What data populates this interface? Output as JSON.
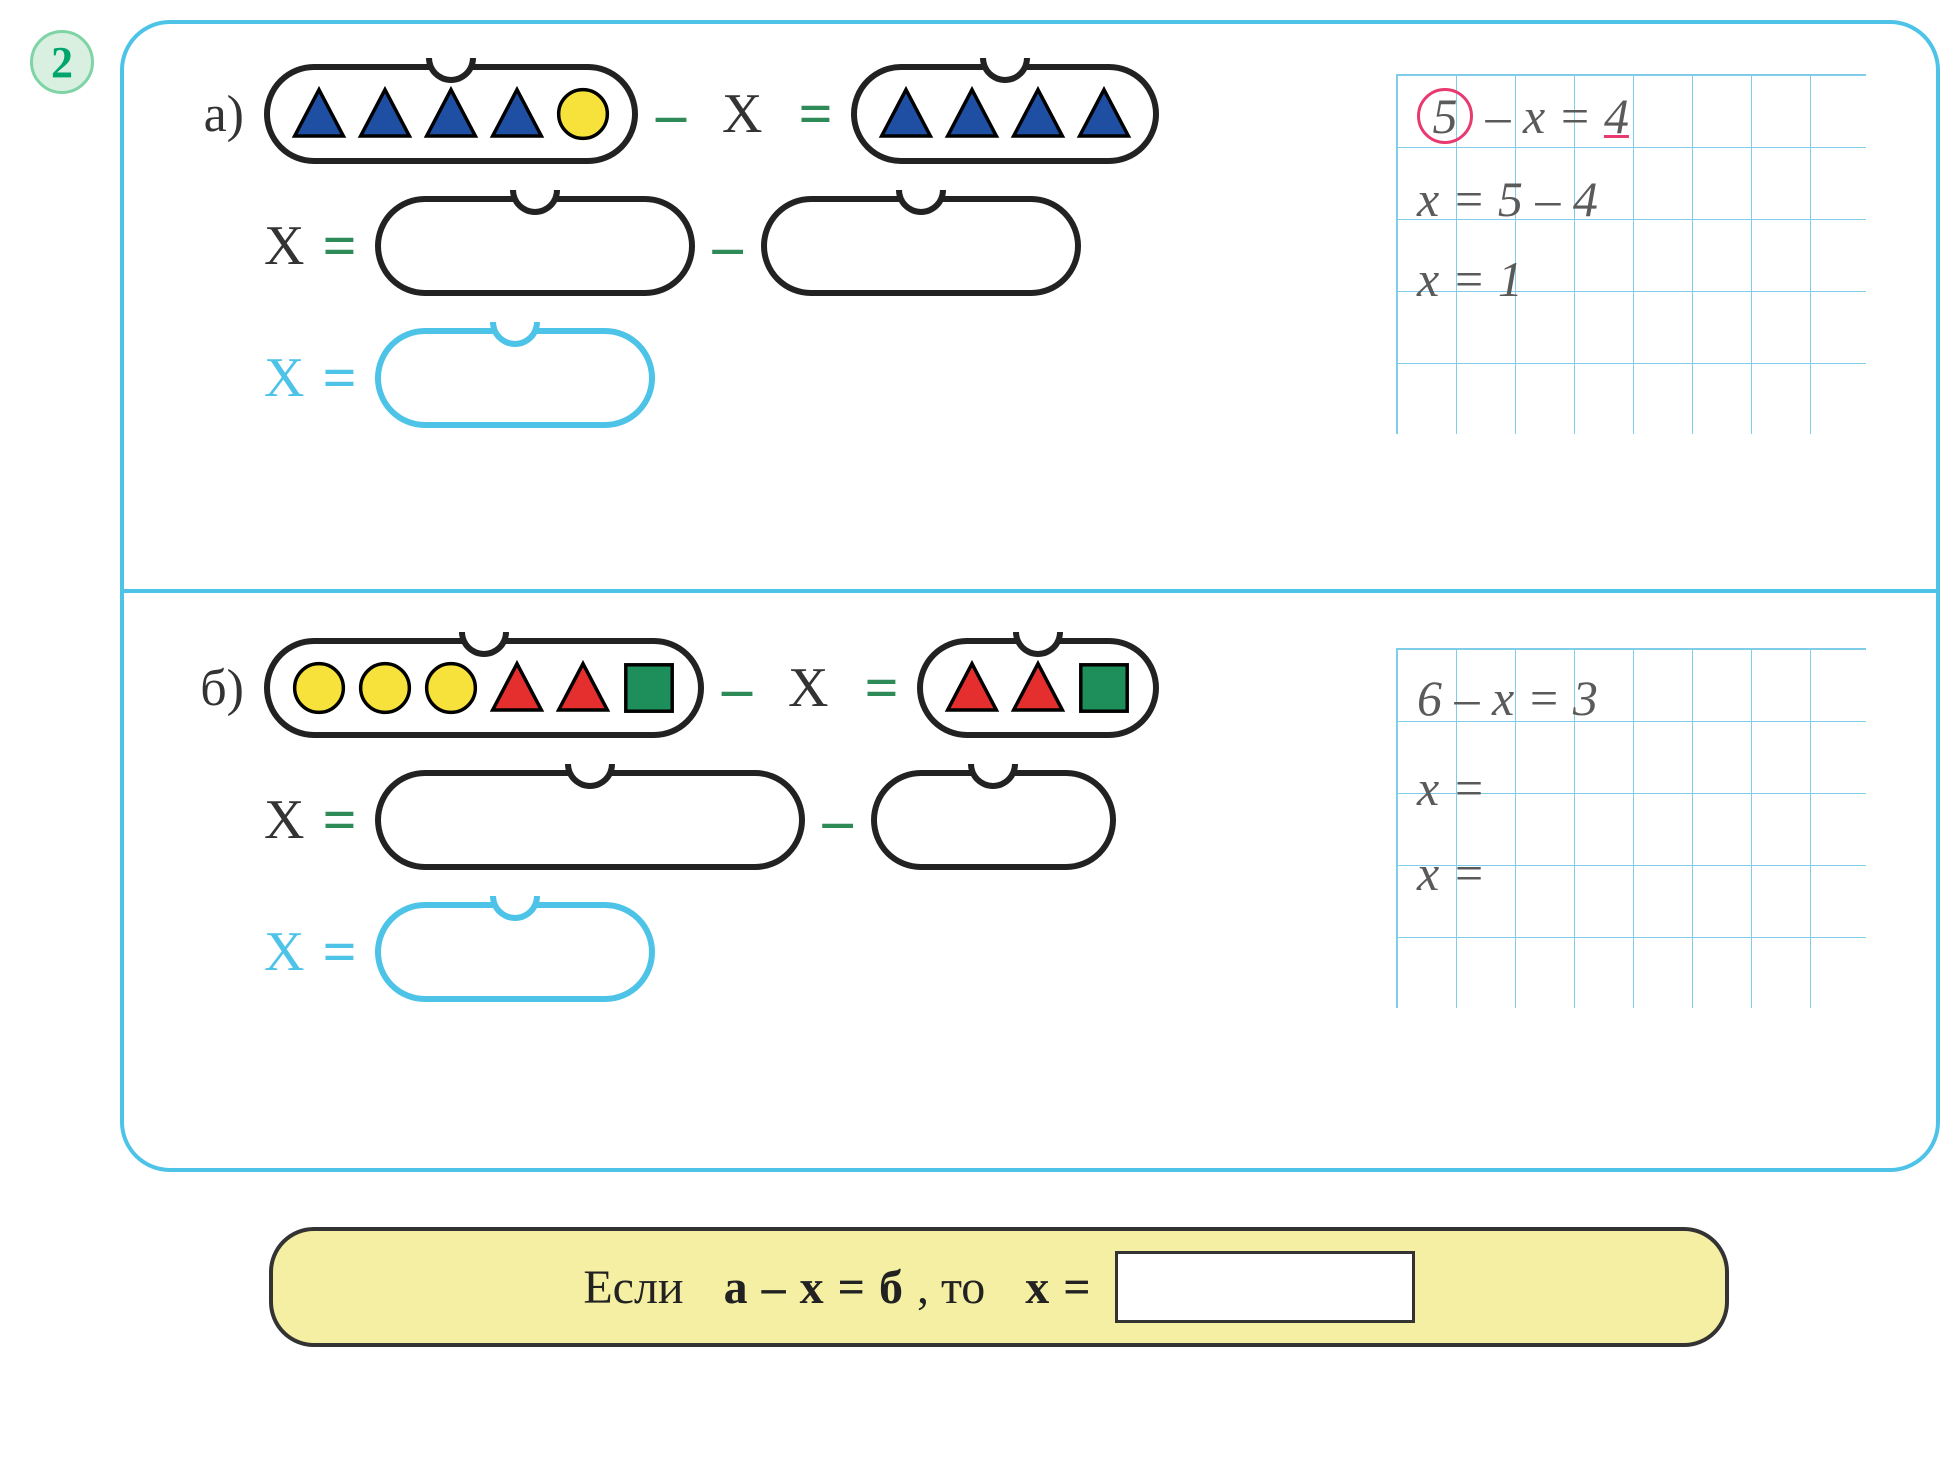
{
  "problem_number": "2",
  "colors": {
    "frame": "#4dc3e8",
    "minus": "#2e8b57",
    "bag_border": "#222222",
    "highlight": "#e83a6f",
    "rule_bg": "#f5efa3",
    "shape_blue": "#1e4fa3",
    "shape_yellow": "#f7e23b",
    "shape_red": "#e52f2f",
    "shape_green": "#1e8f5a",
    "grid": "#7fcde8",
    "writing": "#5a5a5a"
  },
  "symbols": {
    "minus": "–",
    "equals": "=",
    "variable": "X"
  },
  "part_a": {
    "label": "а)",
    "left_bag": [
      {
        "type": "triangle",
        "color": "#1e4fa3"
      },
      {
        "type": "triangle",
        "color": "#1e4fa3"
      },
      {
        "type": "triangle",
        "color": "#1e4fa3"
      },
      {
        "type": "triangle",
        "color": "#1e4fa3"
      },
      {
        "type": "circle",
        "color": "#f7e23b"
      }
    ],
    "right_bag": [
      {
        "type": "triangle",
        "color": "#1e4fa3"
      },
      {
        "type": "triangle",
        "color": "#1e4fa3"
      },
      {
        "type": "triangle",
        "color": "#1e4fa3"
      },
      {
        "type": "triangle",
        "color": "#1e4fa3"
      }
    ],
    "grid_lines": [
      {
        "prefix_circled": "5",
        "rest": "– x = ",
        "suffix_underlined": "4"
      },
      {
        "text": "x = 5 – 4"
      },
      {
        "text": "x = 1"
      }
    ]
  },
  "part_b": {
    "label": "б)",
    "left_bag": [
      {
        "type": "circle",
        "color": "#f7e23b"
      },
      {
        "type": "circle",
        "color": "#f7e23b"
      },
      {
        "type": "circle",
        "color": "#f7e23b"
      },
      {
        "type": "triangle",
        "color": "#e52f2f"
      },
      {
        "type": "triangle",
        "color": "#e52f2f"
      },
      {
        "type": "square",
        "color": "#1e8f5a"
      }
    ],
    "right_bag": [
      {
        "type": "triangle",
        "color": "#e52f2f"
      },
      {
        "type": "triangle",
        "color": "#e52f2f"
      },
      {
        "type": "square",
        "color": "#1e8f5a"
      }
    ],
    "grid_lines": [
      {
        "text": "6 – x = 3"
      },
      {
        "text": "x ="
      },
      {
        "text": "x ="
      }
    ]
  },
  "rule": {
    "prefix": "Если",
    "a": "a",
    "minus": "–",
    "x": "x",
    "eq": "=",
    "b": "б",
    "mid": ", то",
    "x2": "x",
    "eq2": "="
  }
}
